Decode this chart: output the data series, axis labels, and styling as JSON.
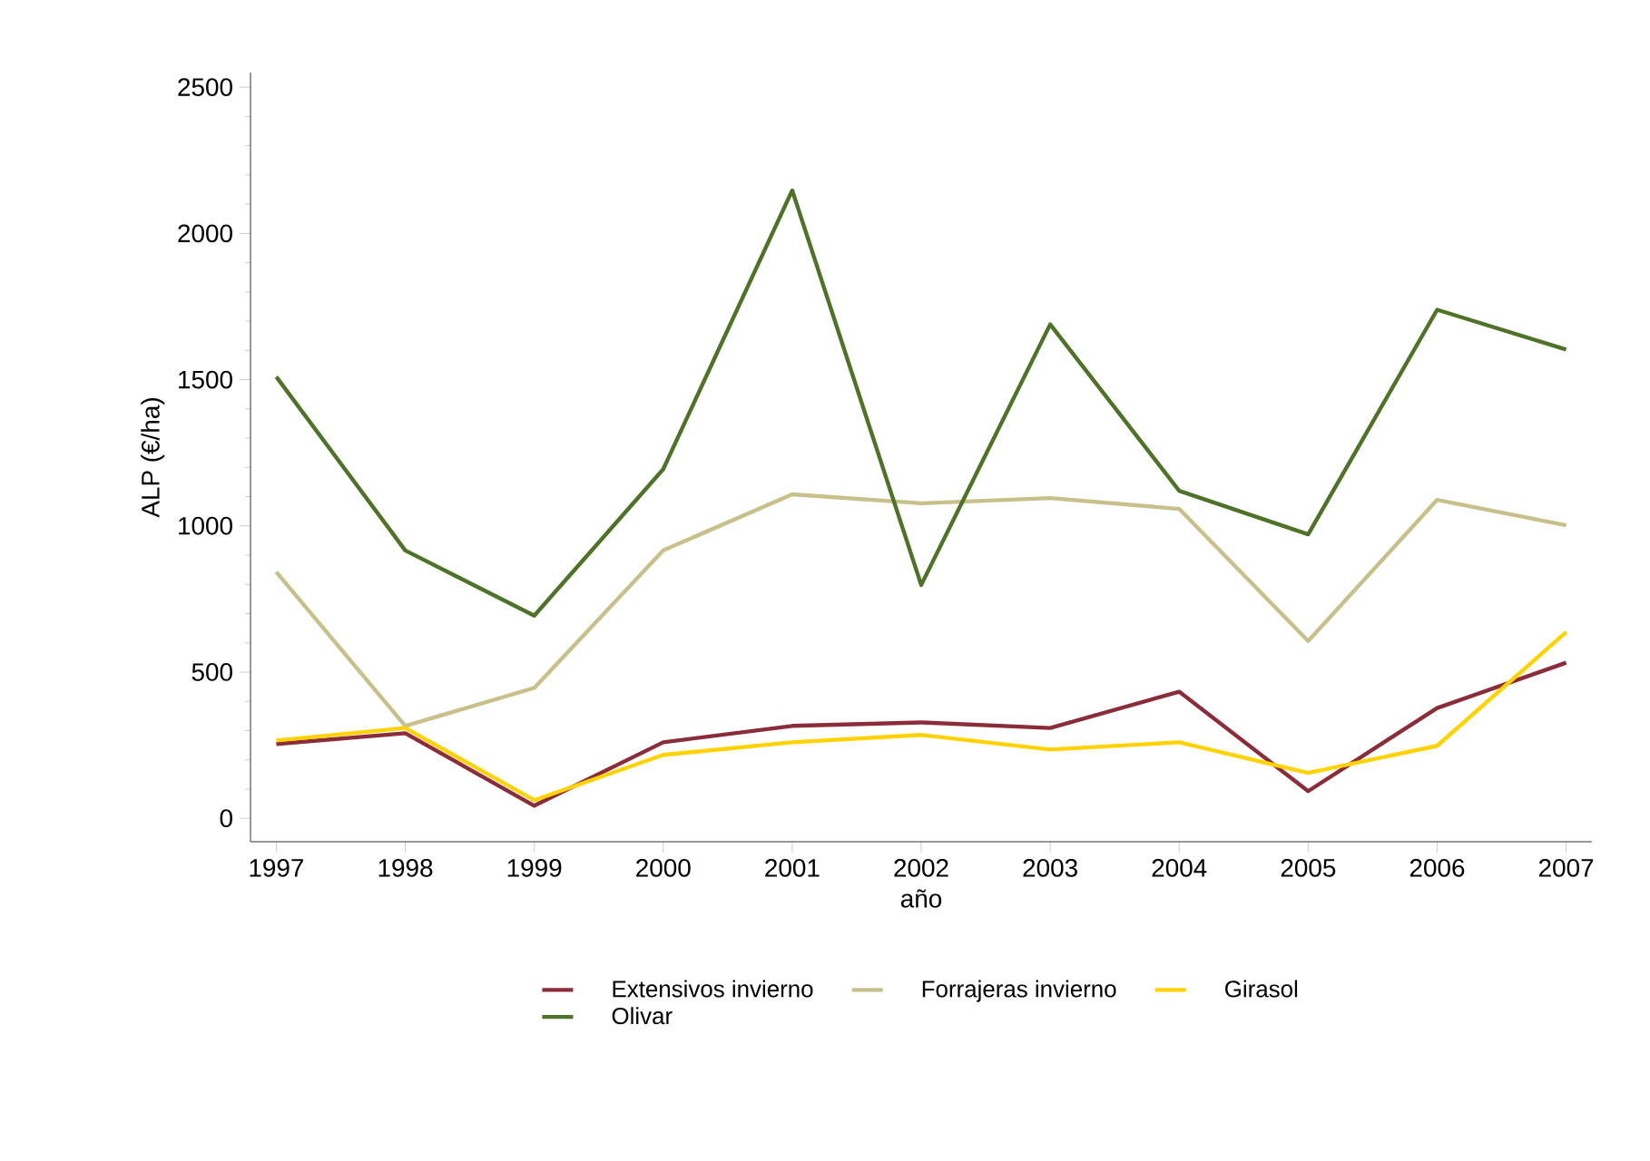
{
  "chart_data": {
    "type": "line",
    "xlabel": "año",
    "ylabel": "ALP (€/ha)",
    "x": [
      1997,
      1998,
      1999,
      2000,
      2001,
      2002,
      2003,
      2004,
      2005,
      2006,
      2007
    ],
    "series": [
      {
        "name": "Extensivos invierno",
        "color": "#8b2c3a",
        "values": [
          254,
          291,
          43,
          260,
          316,
          328,
          309,
          433,
          93,
          377,
          532
        ]
      },
      {
        "name": "Forrajeras invierno",
        "color": "#c8c08a",
        "values": [
          842,
          316,
          446,
          916,
          1108,
          1077,
          1095,
          1058,
          606,
          1089,
          1002
        ]
      },
      {
        "name": "Girasol",
        "color": "#ffd200",
        "values": [
          266,
          309,
          62,
          217,
          260,
          285,
          235,
          260,
          155,
          248,
          637
        ]
      },
      {
        "name": "Olivar",
        "color": "#4e7228",
        "values": [
          1510,
          916,
          693,
          1194,
          2147,
          798,
          1689,
          1120,
          971,
          1739,
          1603
        ]
      }
    ],
    "xlim": [
      1996.8,
      2007.2
    ],
    "ylim": [
      -80,
      2550
    ],
    "xticks": [
      1997,
      1998,
      1999,
      2000,
      2001,
      2002,
      2003,
      2004,
      2005,
      2006,
      2007
    ],
    "yticks": [
      0,
      500,
      1000,
      1500,
      2000,
      2500
    ],
    "grid": false,
    "legend": "bottom",
    "marker": "none",
    "line_style": "solid"
  }
}
